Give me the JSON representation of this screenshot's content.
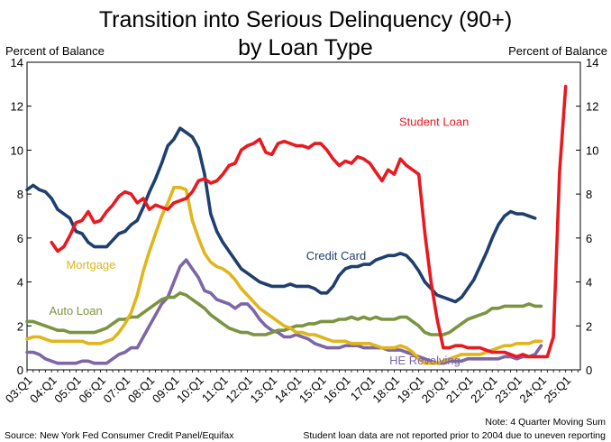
{
  "chart_data": {
    "type": "line",
    "title_line1": "Transition into Serious Delinquency (90+)",
    "title_line2": "by Loan Type",
    "ylabel_left": "Percent of Balance",
    "ylabel_right": "Percent of Balance",
    "ylim": [
      0,
      14
    ],
    "yticks": [
      "0",
      "2",
      "4",
      "6",
      "8",
      "10",
      "12",
      "14"
    ],
    "xticks": [
      "03:Q1",
      "04:Q1",
      "05:Q1",
      "06:Q1",
      "07:Q1",
      "08:Q1",
      "09:Q1",
      "10:Q1",
      "11:Q1",
      "12:Q1",
      "13:Q1",
      "14:Q1",
      "15:Q1",
      "16:Q1",
      "17Q1",
      "18:Q1",
      "19:Q1",
      "20:Q1",
      "21:Q1",
      "22:Q1",
      "23:Q1",
      "24:Q1",
      "25:Q1"
    ],
    "x_start": 2003.0,
    "x_step": 0.25,
    "grid": false,
    "series": [
      {
        "name": "Credit Card",
        "color": "#1f3f6e",
        "label_pos": [
          2014.4,
          5.0
        ],
        "values": [
          8.2,
          8.4,
          8.2,
          8.1,
          7.8,
          7.3,
          7.1,
          6.9,
          6.3,
          6.2,
          5.8,
          5.6,
          5.6,
          5.6,
          5.9,
          6.2,
          6.3,
          6.6,
          6.8,
          7.4,
          8.1,
          8.7,
          9.4,
          10.2,
          10.5,
          11.0,
          10.8,
          10.6,
          10.1,
          8.9,
          7.1,
          6.3,
          5.8,
          5.4,
          5.0,
          4.6,
          4.4,
          4.2,
          4.0,
          3.9,
          3.8,
          3.8,
          3.8,
          3.9,
          3.8,
          3.8,
          3.8,
          3.7,
          3.5,
          3.5,
          3.8,
          4.3,
          4.6,
          4.7,
          4.7,
          4.8,
          4.8,
          5.0,
          5.1,
          5.2,
          5.2,
          5.3,
          5.2,
          4.9,
          4.5,
          4.0,
          3.7,
          3.4,
          3.3,
          3.2,
          3.1,
          3.3,
          3.7,
          4.1,
          4.7,
          5.3,
          6.0,
          6.6,
          7.0,
          7.2,
          7.1,
          7.1,
          7.0,
          6.9
        ]
      },
      {
        "name": "Student Loan",
        "color": "#e8191f",
        "label_pos": [
          2018.2,
          11.1
        ],
        "start_index": 4,
        "values": [
          5.8,
          5.4,
          5.6,
          6.1,
          6.7,
          6.8,
          7.2,
          6.7,
          6.8,
          7.2,
          7.5,
          7.9,
          8.1,
          8.0,
          7.6,
          7.8,
          7.3,
          7.5,
          7.4,
          7.3,
          7.6,
          7.7,
          7.8,
          8.1,
          8.6,
          8.7,
          8.5,
          8.6,
          8.9,
          9.3,
          9.4,
          10.0,
          10.2,
          10.3,
          10.5,
          9.9,
          9.8,
          10.3,
          10.4,
          10.3,
          10.2,
          10.2,
          10.1,
          10.3,
          10.3,
          10.0,
          9.6,
          9.3,
          9.5,
          9.4,
          9.7,
          9.6,
          9.4,
          9.0,
          8.6,
          9.1,
          8.9,
          9.6,
          9.3,
          9.1,
          8.9,
          6.2,
          4.0,
          2.3,
          1.0,
          1.0,
          1.1,
          1.1,
          1.0,
          1.0,
          1.0,
          0.9,
          0.8,
          0.8,
          0.8,
          0.7,
          0.6,
          0.7,
          0.6,
          0.6,
          0.6,
          0.6,
          1.5,
          9.0,
          12.9
        ]
      },
      {
        "name": "Mortgage",
        "color": "#e1b51c",
        "label_pos": [
          2004.6,
          4.6
        ],
        "values": [
          1.4,
          1.5,
          1.5,
          1.4,
          1.3,
          1.3,
          1.3,
          1.3,
          1.3,
          1.3,
          1.2,
          1.2,
          1.2,
          1.3,
          1.4,
          1.7,
          2.1,
          2.6,
          3.4,
          4.5,
          5.4,
          6.2,
          7.0,
          7.6,
          8.3,
          8.3,
          8.2,
          6.8,
          6.0,
          5.3,
          4.9,
          4.7,
          4.6,
          4.4,
          4.1,
          3.7,
          3.4,
          3.1,
          2.8,
          2.6,
          2.4,
          2.2,
          2.0,
          1.9,
          1.7,
          1.7,
          1.6,
          1.6,
          1.5,
          1.4,
          1.3,
          1.3,
          1.3,
          1.2,
          1.2,
          1.2,
          1.2,
          1.1,
          1.0,
          1.0,
          1.0,
          1.1,
          1.0,
          0.8,
          0.5,
          0.3,
          0.3,
          0.3,
          0.4,
          0.5,
          0.6,
          0.7,
          0.7,
          0.7,
          0.7,
          0.8,
          0.9,
          1.0,
          1.1,
          1.1,
          1.2,
          1.2,
          1.2,
          1.3,
          1.3
        ]
      },
      {
        "name": "Auto Loan",
        "color": "#7c9341",
        "label_pos": [
          2003.9,
          2.5
        ],
        "values": [
          2.2,
          2.2,
          2.1,
          2.0,
          1.9,
          1.8,
          1.8,
          1.7,
          1.7,
          1.7,
          1.7,
          1.7,
          1.8,
          1.9,
          2.1,
          2.3,
          2.3,
          2.4,
          2.4,
          2.6,
          2.8,
          3.0,
          3.2,
          3.3,
          3.3,
          3.5,
          3.4,
          3.2,
          3.0,
          2.8,
          2.5,
          2.3,
          2.1,
          1.9,
          1.8,
          1.7,
          1.7,
          1.6,
          1.6,
          1.6,
          1.7,
          1.8,
          1.8,
          1.9,
          2.0,
          2.0,
          2.1,
          2.1,
          2.2,
          2.2,
          2.2,
          2.3,
          2.3,
          2.4,
          2.3,
          2.4,
          2.3,
          2.4,
          2.3,
          2.3,
          2.3,
          2.4,
          2.4,
          2.2,
          2.0,
          1.7,
          1.6,
          1.6,
          1.6,
          1.7,
          1.9,
          2.1,
          2.3,
          2.4,
          2.5,
          2.6,
          2.8,
          2.8,
          2.9,
          2.9,
          2.9,
          2.9,
          3.0,
          2.9,
          2.9
        ]
      },
      {
        "name": "HE Revolving",
        "color": "#7d66a6",
        "label_pos": [
          2017.8,
          0.25
        ],
        "values": [
          0.8,
          0.8,
          0.7,
          0.5,
          0.4,
          0.3,
          0.3,
          0.3,
          0.3,
          0.4,
          0.4,
          0.3,
          0.3,
          0.3,
          0.5,
          0.7,
          0.8,
          1.0,
          1.0,
          1.5,
          2.0,
          2.5,
          3.0,
          3.3,
          4.0,
          4.7,
          5.0,
          4.6,
          4.2,
          3.6,
          3.5,
          3.2,
          3.1,
          3.0,
          2.8,
          3.0,
          3.0,
          2.7,
          2.3,
          2.0,
          1.8,
          1.7,
          1.5,
          1.5,
          1.6,
          1.5,
          1.4,
          1.2,
          1.1,
          1.0,
          1.0,
          1.0,
          1.1,
          1.1,
          1.1,
          1.0,
          1.0,
          1.0,
          1.0,
          0.9,
          0.9,
          0.9,
          0.8,
          0.7,
          0.6,
          0.5,
          0.4,
          0.3,
          0.3,
          0.4,
          0.4,
          0.4,
          0.5,
          0.5,
          0.5,
          0.5,
          0.5,
          0.5,
          0.6,
          0.6,
          0.5,
          0.6,
          0.6,
          0.7,
          1.1
        ]
      }
    ]
  },
  "footer": {
    "source": "Source: New York Fed Consumer Credit Panel/Equifax",
    "note1": "Note: 4 Quarter Moving Sum",
    "note2": "Student loan data are not reported prior to 2004 due to uneven reporting"
  }
}
